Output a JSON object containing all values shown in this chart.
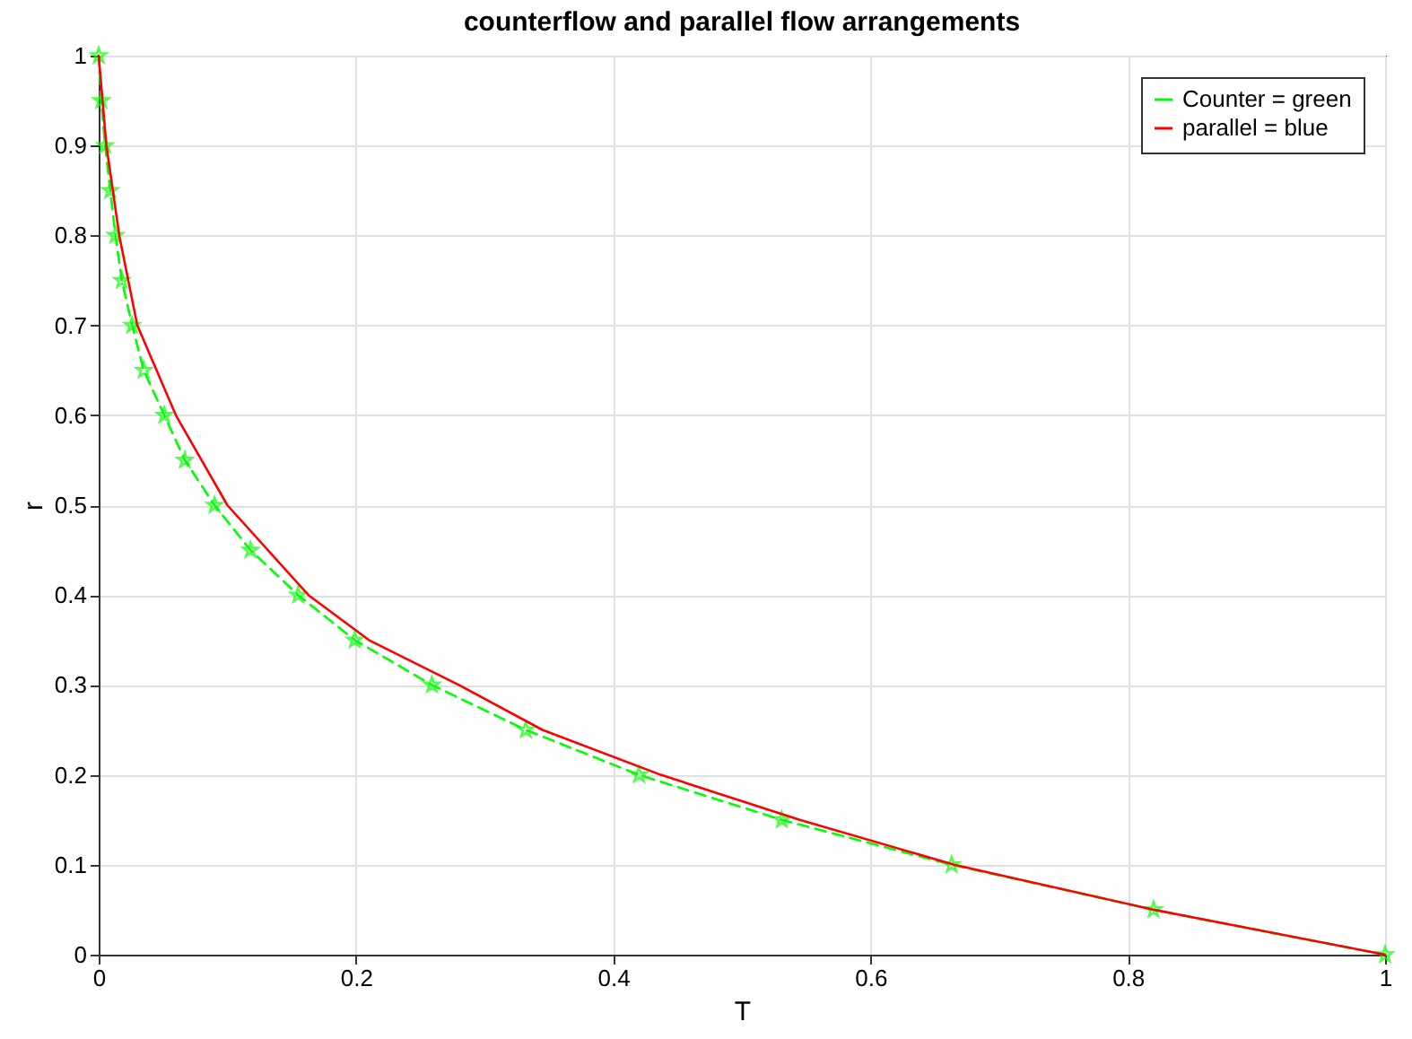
{
  "chart_data": {
    "type": "line",
    "title": "counterflow and parallel flow arrangements",
    "xlabel": "T",
    "ylabel": "r",
    "xlim": [
      0,
      1
    ],
    "ylim": [
      0,
      1
    ],
    "xticks": [
      0,
      0.2,
      0.4,
      0.6,
      0.8,
      1
    ],
    "yticks": [
      0,
      0.1,
      0.2,
      0.3,
      0.4,
      0.5,
      0.6,
      0.7,
      0.8,
      0.9,
      1
    ],
    "grid": true,
    "legend": "top right",
    "series": [
      {
        "name": "Counter = green",
        "color": "#00ff00",
        "marker": "star",
        "line_style": "dashed",
        "x": [
          0,
          0.002,
          0.005,
          0.009,
          0.013,
          0.018,
          0.026,
          0.035,
          0.051,
          0.067,
          0.09,
          0.118,
          0.155,
          0.199,
          0.259,
          0.332,
          0.42,
          0.531,
          0.663,
          0.82,
          1
        ],
        "values": [
          1,
          0.95,
          0.9,
          0.85,
          0.8,
          0.75,
          0.7,
          0.65,
          0.6,
          0.55,
          0.5,
          0.45,
          0.4,
          0.35,
          0.3,
          0.25,
          0.2,
          0.15,
          0.1,
          0.05,
          0
        ]
      },
      {
        "name": "parallel = blue",
        "color": "#ff0000",
        "marker": "none",
        "line_style": "solid",
        "x": [
          0,
          0.006,
          0.016,
          0.03,
          0.06,
          0.1,
          0.163,
          0.21,
          0.28,
          0.345,
          0.437,
          0.545,
          0.665,
          0.82,
          1
        ],
        "values": [
          1,
          0.9,
          0.8,
          0.7,
          0.6,
          0.5,
          0.4,
          0.35,
          0.3,
          0.25,
          0.2,
          0.15,
          0.1,
          0.05,
          0
        ]
      }
    ]
  }
}
